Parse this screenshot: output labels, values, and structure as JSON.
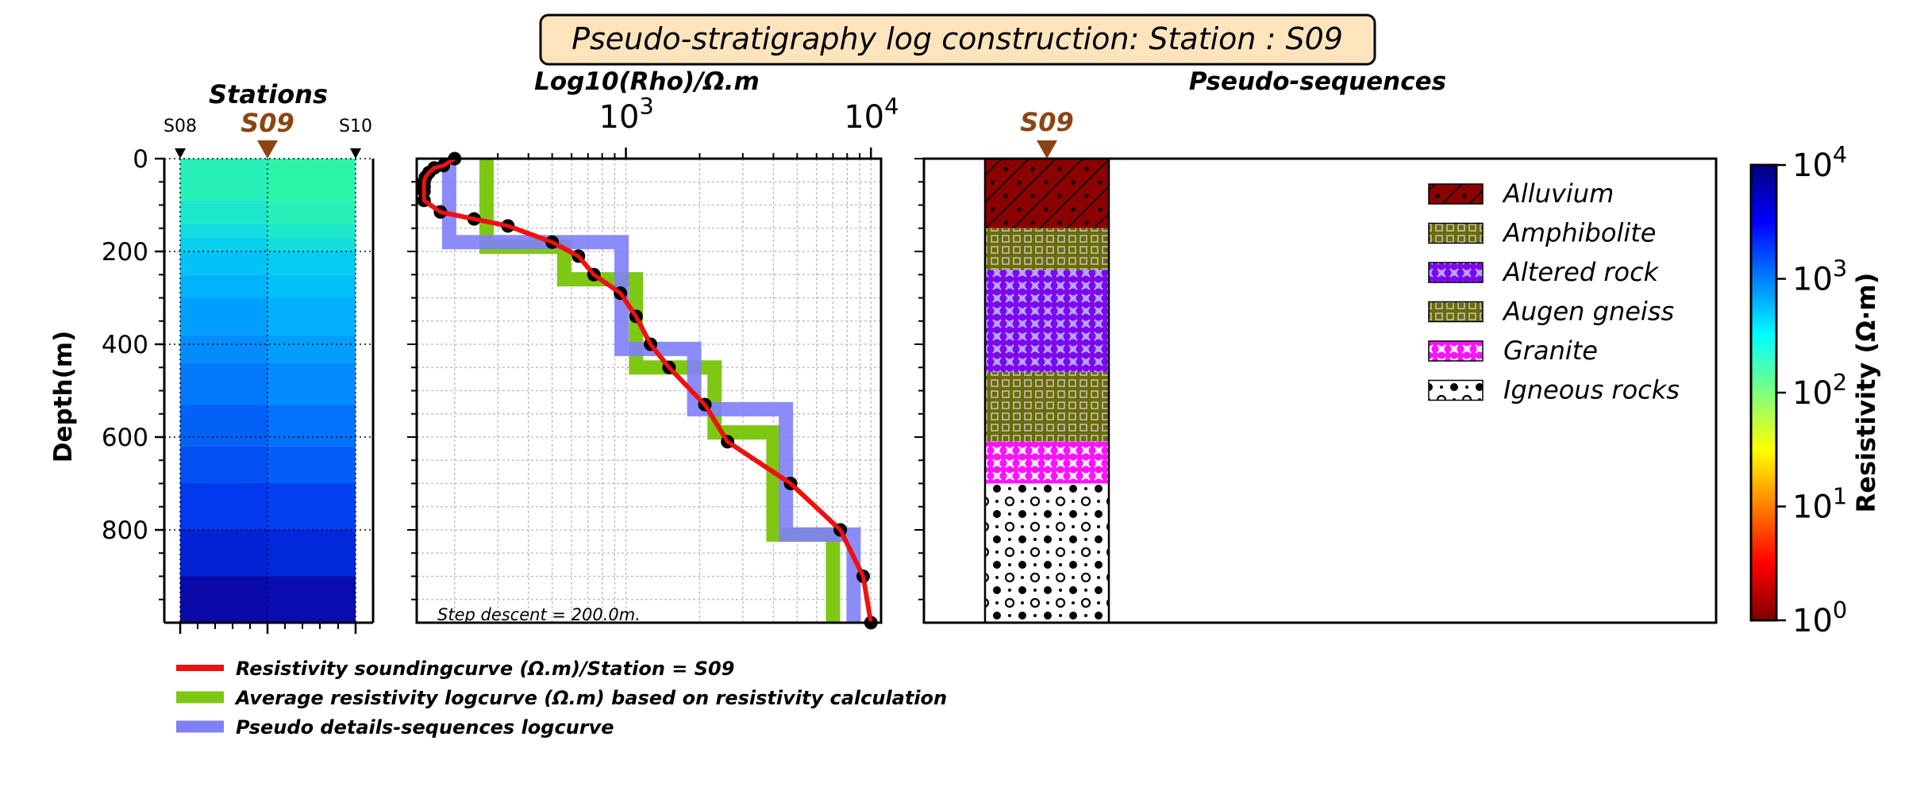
{
  "figure": {
    "title": "Pseudo-stratigraphy log construction: Station : S09",
    "title_bg": "#fde4bd"
  },
  "chart_data": [
    {
      "type": "heatmap",
      "title": "Stations",
      "ylabel": "Depth(m)",
      "ylim": [
        0,
        1000
      ],
      "y_inverted": true,
      "y_ticks": [
        0,
        200,
        400,
        600,
        800
      ],
      "stations": [
        "S08",
        "S09",
        "S10"
      ],
      "selected_station": "S09",
      "layers": [
        {
          "top": 0,
          "bottom": 90,
          "left_color": "#27f0b8",
          "right_color": "#2cf4a8"
        },
        {
          "top": 90,
          "bottom": 140,
          "left_color": "#1de7cc",
          "right_color": "#27f0b8"
        },
        {
          "top": 140,
          "bottom": 170,
          "left_color": "#12dcdf",
          "right_color": "#1ee8c8"
        },
        {
          "top": 170,
          "bottom": 200,
          "left_color": "#08d0ee",
          "right_color": "#14dedb"
        },
        {
          "top": 200,
          "bottom": 250,
          "left_color": "#03c2f8",
          "right_color": "#06ccf2"
        },
        {
          "top": 250,
          "bottom": 300,
          "left_color": "#02b2fb",
          "right_color": "#03c0f8"
        },
        {
          "top": 300,
          "bottom": 380,
          "left_color": "#019ffd",
          "right_color": "#02b0fb"
        },
        {
          "top": 380,
          "bottom": 440,
          "left_color": "#028cfd",
          "right_color": "#019efd"
        },
        {
          "top": 440,
          "bottom": 530,
          "left_color": "#0278fb",
          "right_color": "#028cfd"
        },
        {
          "top": 530,
          "bottom": 620,
          "left_color": "#0262f8",
          "right_color": "#0272fb"
        },
        {
          "top": 620,
          "bottom": 700,
          "left_color": "#0250f4",
          "right_color": "#025ef6"
        },
        {
          "top": 700,
          "bottom": 800,
          "left_color": "#0238ee",
          "right_color": "#0240f0"
        },
        {
          "top": 800,
          "bottom": 900,
          "left_color": "#0222d4",
          "right_color": "#0228dc"
        },
        {
          "top": 900,
          "bottom": 1000,
          "left_color": "#0a0aa8",
          "right_color": "#0a0cb0"
        }
      ]
    },
    {
      "type": "line",
      "xlabel": "Log10(Rho)/Ω.m",
      "x_scale": "log",
      "xlim": [
        140,
        11000
      ],
      "ylim": [
        0,
        1000
      ],
      "y_inverted": true,
      "x_ticks": [
        {
          "base": "10",
          "exp": "3",
          "value": 1000
        },
        {
          "base": "10",
          "exp": "4",
          "value": 10000
        }
      ],
      "annotation": "Step descent = 200.0m.",
      "series": [
        {
          "name": "Average resistivity logcurve (Ω.m) based on resistivity calculation",
          "color": "#7ec814",
          "x": [
            270,
            270,
            560,
            560,
            1100,
            1100,
            2300,
            2300,
            4000,
            4000,
            7000,
            7000
          ],
          "y": [
            0,
            190,
            190,
            260,
            260,
            450,
            450,
            590,
            590,
            810,
            810,
            1000
          ]
        },
        {
          "name": "Pseudo details-sequences logcurve",
          "color": "#8080f8",
          "x": [
            190,
            190,
            960,
            960,
            1900,
            1900,
            4500,
            4500,
            8500,
            8500
          ],
          "y": [
            0,
            180,
            180,
            410,
            410,
            540,
            540,
            810,
            810,
            1000
          ]
        },
        {
          "name": "Resistivity soundingcurve (Ω.m)/Station = S09",
          "color": "#ee1111",
          "x": [
            200,
            180,
            165,
            157,
            152,
            150,
            150,
            150,
            150,
            175,
            240,
            330,
            500,
            640,
            740,
            950,
            1100,
            1260,
            1500,
            2100,
            2600,
            4700,
            7500,
            9300,
            10000
          ],
          "y": [
            0,
            15,
            20,
            30,
            40,
            50,
            60,
            70,
            90,
            115,
            130,
            145,
            180,
            210,
            250,
            290,
            340,
            400,
            450,
            530,
            610,
            700,
            800,
            900,
            1000
          ]
        }
      ]
    },
    {
      "type": "area",
      "title": "Pseudo-sequences",
      "station_label": "S09",
      "ylim": [
        0,
        1000
      ],
      "y_inverted": true,
      "y_ticks": [
        0,
        200,
        400,
        600,
        800
      ],
      "legend_position": "top-right",
      "units": [
        {
          "name": "Alluvium",
          "top": 0,
          "bottom": 150,
          "fg": "#000000",
          "bg": "#8b0000",
          "pattern": "alluvium"
        },
        {
          "name": "Amphibolite",
          "top": 150,
          "bottom": 240,
          "fg": "#c0c0c0",
          "bg": "#6b6b00",
          "pattern": "amphib"
        },
        {
          "name": "Altered rock",
          "top": 240,
          "bottom": 460,
          "fg": "#c0b0ff",
          "bg": "#7a08f0",
          "pattern": "altered"
        },
        {
          "name": "Augen gneiss",
          "top": 460,
          "bottom": 610,
          "fg": "#c0c0c0",
          "bg": "#6b6b00",
          "pattern": "augen"
        },
        {
          "name": "Granite",
          "top": 610,
          "bottom": 700,
          "fg": "#ffffff",
          "bg": "#ff12ff",
          "pattern": "granite"
        },
        {
          "name": "Igneous rocks",
          "top": 700,
          "bottom": 1000,
          "fg": "#000000",
          "bg": "#ffffff",
          "pattern": "igneous"
        }
      ]
    },
    {
      "type": "heatmap",
      "colorbar": true,
      "label": "Resistivity (Ω·m)",
      "scale": "log",
      "ticks": [
        {
          "base": "10",
          "exp": "4"
        },
        {
          "base": "10",
          "exp": "3"
        },
        {
          "base": "10",
          "exp": "2"
        },
        {
          "base": "10",
          "exp": "1"
        },
        {
          "base": "10",
          "exp": "0"
        }
      ],
      "colormap": [
        "#00007f",
        "#0000ff",
        "#007fff",
        "#00ffff",
        "#7fff7f",
        "#ffff00",
        "#ff7f00",
        "#ff0000",
        "#7f0000"
      ]
    }
  ]
}
